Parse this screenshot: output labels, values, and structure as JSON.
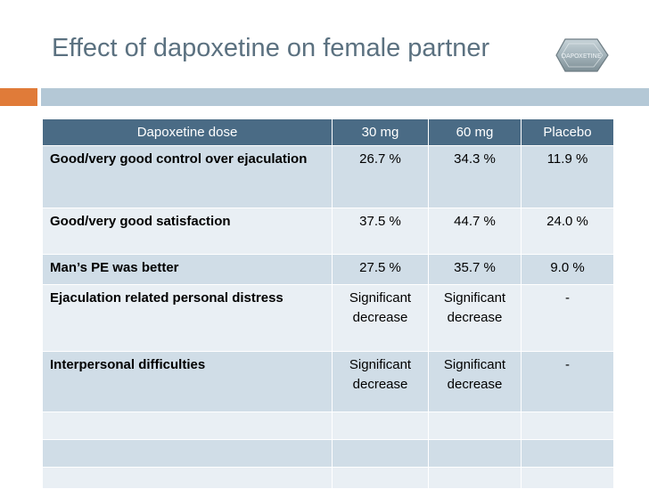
{
  "slide": {
    "title": "Effect of dapoxetine on female partner",
    "image_label": "DAPOXETINE"
  },
  "table": {
    "headers": [
      "Dapoxetine dose",
      "30 mg",
      "60 mg",
      "Placebo"
    ],
    "rows": [
      [
        "Good/very good control over ejaculation",
        "26.7 %",
        "34.3 %",
        "11.9 %"
      ],
      [
        "Good/very good satisfaction",
        "37.5 %",
        "44.7 %",
        "24.0 %"
      ],
      [
        "Man’s PE was better",
        "27.5 %",
        "35.7 %",
        "9.0 %"
      ],
      [
        "Ejaculation related personal distress",
        "Significant decrease",
        "Significant decrease",
        "-"
      ],
      [
        "Interpersonal difficulties",
        "Significant decrease",
        "Significant decrease",
        "-"
      ],
      [
        "",
        "",
        "",
        ""
      ],
      [
        "",
        "",
        "",
        ""
      ],
      [
        "",
        "",
        "",
        ""
      ]
    ]
  },
  "colors": {
    "title": "#5b7180",
    "header_bg": "#4a6b85",
    "row_dark": "#d0dde7",
    "row_light": "#e9eff4",
    "accent_orange": "#e07b39",
    "accent_blue": "#b4c8d6"
  }
}
